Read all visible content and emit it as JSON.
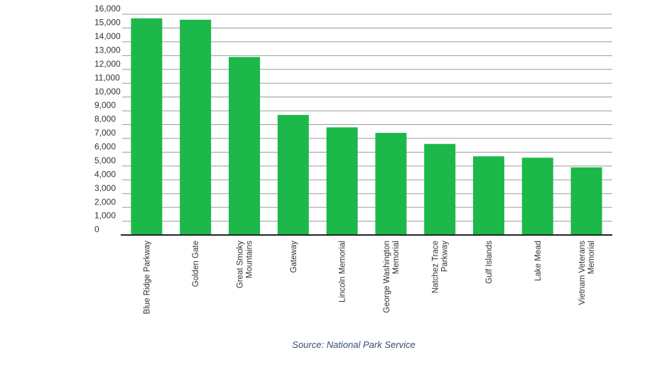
{
  "chart_data": {
    "type": "bar",
    "categories": [
      [
        "Blue Ridge Parkway"
      ],
      [
        "Golden Gate"
      ],
      [
        "Great Smoky",
        "Mountains"
      ],
      [
        "Gateway"
      ],
      [
        "Lincoln Memorial"
      ],
      [
        "George Washington",
        "Memorial"
      ],
      [
        "Natchez Trace",
        "Parkway"
      ],
      [
        "Gulf Islands"
      ],
      [
        "Lake Mead"
      ],
      [
        "Vietnam Veterans",
        "Memorial"
      ]
    ],
    "values": [
      15700,
      15600,
      12900,
      8700,
      7800,
      7400,
      6600,
      5700,
      5600,
      4900
    ],
    "color": "#1cb84a",
    "ylim": [
      0,
      16000
    ],
    "yticks": [
      0,
      {
        "value": 1000,
        "label": "1,000"
      },
      {
        "value": 2000,
        "label": "2,000"
      },
      {
        "value": 3000,
        "label": "3,000"
      },
      {
        "value": 4000,
        "label": "4,000"
      },
      {
        "value": 5000,
        "label": "5,000"
      },
      {
        "value": 6000,
        "label": "6,000"
      },
      {
        "value": 7000,
        "label": "7,000"
      },
      {
        "value": 8000,
        "label": "8,000"
      },
      {
        "value": 9000,
        "label": "9,000"
      },
      {
        "value": 10000,
        "label": "10,000"
      },
      {
        "value": 11000,
        "label": "11,000"
      },
      {
        "value": 12000,
        "label": "12,000"
      },
      {
        "value": 13000,
        "label": "13,000"
      },
      {
        "value": 14000,
        "label": "14,000"
      },
      {
        "value": 15000,
        "label": "15,000"
      },
      {
        "value": 16000,
        "label": "16,000"
      }
    ],
    "grid": true,
    "source": "Source: National Park Service"
  }
}
